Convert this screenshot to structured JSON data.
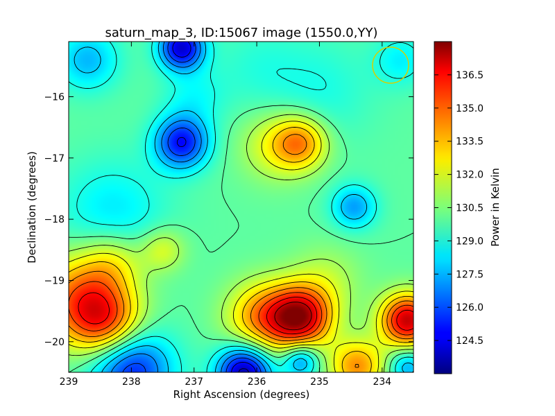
{
  "chart_data": {
    "type": "heatmap",
    "title": "saturn_map_3, ID:15067 image (1550.0,YY)",
    "xlabel": "Right Ascension (degrees)",
    "ylabel": "Declination (degrees)",
    "colorbar_label": "Power in Kelvin",
    "colormap": "jet",
    "xlim": [
      239.0,
      233.5
    ],
    "ylim": [
      -20.5,
      -15.1
    ],
    "x_ticks": [
      239,
      238,
      237,
      236,
      235,
      234
    ],
    "x_tick_labels": [
      "239",
      "238",
      "237",
      "236",
      "235",
      "234"
    ],
    "y_ticks": [
      -16,
      -17,
      -18,
      -19,
      -20
    ],
    "y_tick_labels": [
      "−16",
      "−17",
      "−18",
      "−19",
      "−20"
    ],
    "clim": [
      123.0,
      138.0
    ],
    "colorbar_ticks": [
      124.5,
      126.0,
      127.5,
      129.0,
      130.5,
      132.0,
      133.5,
      135.0,
      136.5
    ],
    "colorbar_tick_labels": [
      "124.5",
      "126.0",
      "127.5",
      "129.0",
      "130.5",
      "132.0",
      "133.5",
      "135.0",
      "136.5"
    ],
    "background_level": 130.0,
    "contours": true,
    "features": [
      {
        "ra": 238.7,
        "dec": -15.4,
        "value": 127.6,
        "spread": 0.35
      },
      {
        "ra": 237.2,
        "dec": -15.2,
        "value": 124.2,
        "spread": 0.25
      },
      {
        "ra": 237.2,
        "dec": -16.75,
        "value": 125.0,
        "spread": 0.3
      },
      {
        "ra": 236.2,
        "dec": -20.5,
        "value": 123.5,
        "spread": 0.3
      },
      {
        "ra": 238.0,
        "dec": -20.45,
        "value": 125.2,
        "spread": 0.45
      },
      {
        "ra": 235.3,
        "dec": -20.3,
        "value": 126.6,
        "spread": 0.2
      },
      {
        "ra": 233.6,
        "dec": -20.4,
        "value": 127.3,
        "spread": 0.2
      },
      {
        "ra": 234.45,
        "dec": -17.8,
        "value": 127.2,
        "spread": 0.25
      },
      {
        "ra": 238.3,
        "dec": -17.9,
        "value": 128.3,
        "spread": 0.6
      },
      {
        "ra": 235.3,
        "dec": -19.6,
        "value": 136.8,
        "spread": 0.35
      },
      {
        "ra": 235.9,
        "dec": -19.6,
        "value": 134.0,
        "spread": 0.4
      },
      {
        "ra": 233.6,
        "dec": -19.65,
        "value": 137.0,
        "spread": 0.3
      },
      {
        "ra": 238.8,
        "dec": -19.3,
        "value": 134.5,
        "spread": 0.5
      },
      {
        "ra": 238.4,
        "dec": -19.7,
        "value": 134.0,
        "spread": 0.4
      },
      {
        "ra": 234.4,
        "dec": -20.4,
        "value": 134.0,
        "spread": 0.3
      },
      {
        "ra": 235.3,
        "dec": -16.75,
        "value": 133.6,
        "spread": 0.3
      },
      {
        "ra": 235.7,
        "dec": -16.8,
        "value": 132.0,
        "spread": 0.4
      },
      {
        "ra": 238.3,
        "dec": -18.7,
        "value": 132.0,
        "spread": 0.35
      },
      {
        "ra": 237.5,
        "dec": -18.5,
        "value": 132.0,
        "spread": 0.25
      },
      {
        "ra": 234.9,
        "dec": -19.0,
        "value": 131.3,
        "spread": 0.4
      },
      {
        "ra": 237.0,
        "dec": -16.0,
        "value": 128.8,
        "spread": 0.35
      },
      {
        "ra": 235.0,
        "dec": -15.9,
        "value": 129.0,
        "spread": 0.6
      },
      {
        "ra": 233.7,
        "dec": -15.4,
        "value": 128.5,
        "spread": 0.3
      },
      {
        "ra": 236.0,
        "dec": -15.5,
        "value": 129.3,
        "spread": 0.5
      }
    ]
  }
}
